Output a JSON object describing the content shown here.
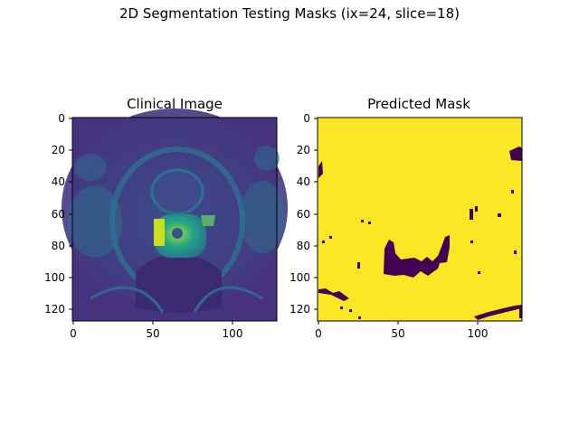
{
  "figure": {
    "suptitle": "2D Segmentation Testing Masks (ix=24, slice=18)"
  },
  "panels": [
    {
      "title": "Clinical Image",
      "colormap": "viridis",
      "x_ticks": [
        "0",
        "50",
        "100"
      ],
      "y_ticks": [
        "0",
        "20",
        "40",
        "60",
        "80",
        "100",
        "120"
      ]
    },
    {
      "title": "Predicted Mask",
      "colormap": "viridis-binary",
      "x_ticks": [
        "0",
        "50",
        "100"
      ],
      "y_ticks": [
        "0",
        "20",
        "40",
        "60",
        "80",
        "100",
        "120"
      ]
    }
  ],
  "colors": {
    "viridis_dark": "#440154",
    "viridis_purple": "#46327e",
    "viridis_blue": "#365c8d",
    "viridis_teal": "#277f8e",
    "viridis_green": "#1fa187",
    "viridis_lime": "#a0da39",
    "viridis_yellow": "#fde725"
  }
}
